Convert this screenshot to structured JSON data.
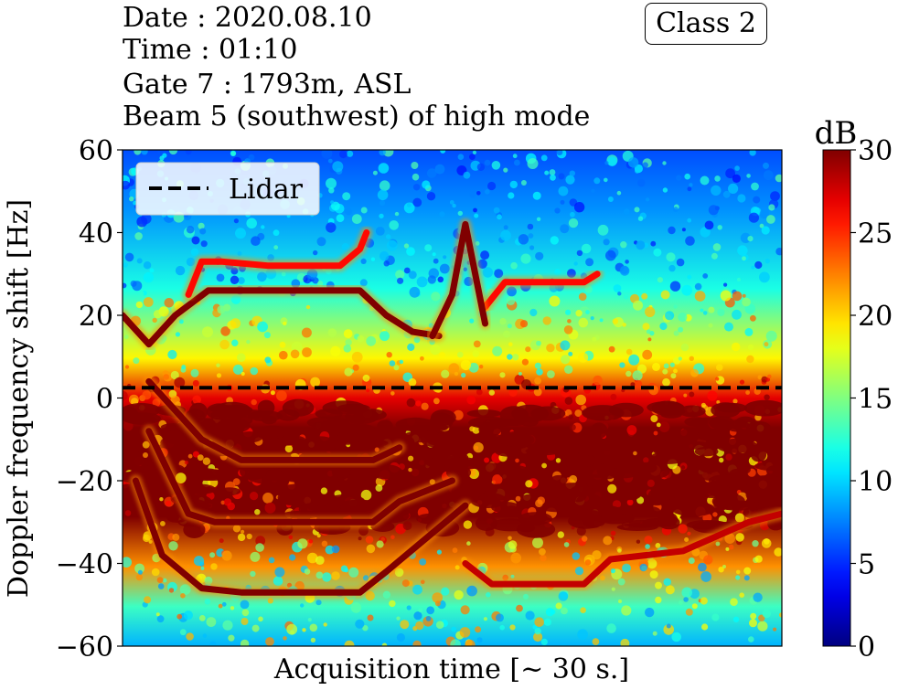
{
  "header": {
    "date_line": "Date : 2020.08.10",
    "time_line": "Time : 01:10",
    "gate_line": "Gate 7 : 1793m, ASL",
    "beam_line": "Beam 5 (southwest) of high mode",
    "class_label": "Class 2"
  },
  "chart_data": {
    "type": "heatmap",
    "title": "",
    "xlabel": "Acquisition time [~ 30 s.]",
    "ylabel": "Doppler frequency shift [Hz]",
    "ylim": [
      -60,
      60
    ],
    "x_ticks": [],
    "y_ticks": [
      60,
      40,
      20,
      0,
      -20,
      -40,
      -60
    ],
    "y_tick_labels": [
      "60",
      "40",
      "20",
      "0",
      "−20",
      "−40",
      "−60"
    ],
    "colorbar": {
      "label": "dB",
      "range": [
        0,
        30
      ],
      "ticks": [
        0,
        5,
        10,
        15,
        20,
        25,
        30
      ],
      "colormap": "jet"
    },
    "lidar_line": {
      "name": "Lidar",
      "y": 2.5,
      "style": "dashed",
      "color": "#000000"
    },
    "legend_position": "top-left",
    "signal_traces": [
      {
        "level_db": 30,
        "points": [
          [
            0,
            20
          ],
          [
            0.04,
            13
          ],
          [
            0.08,
            20
          ],
          [
            0.13,
            26
          ],
          [
            0.36,
            26
          ],
          [
            0.4,
            20
          ],
          [
            0.44,
            16
          ],
          [
            0.48,
            15
          ]
        ]
      },
      {
        "level_db": 30,
        "points": [
          [
            0.04,
            4
          ],
          [
            0.08,
            -3
          ],
          [
            0.12,
            -10
          ],
          [
            0.18,
            -15
          ],
          [
            0.38,
            -15
          ],
          [
            0.42,
            -12
          ]
        ]
      },
      {
        "level_db": 30,
        "points": [
          [
            0.04,
            -8
          ],
          [
            0.1,
            -28
          ],
          [
            0.14,
            -30
          ],
          [
            0.38,
            -30
          ],
          [
            0.42,
            -25
          ],
          [
            0.5,
            -20
          ]
        ]
      },
      {
        "level_db": 30,
        "points": [
          [
            0.02,
            -20
          ],
          [
            0.06,
            -38
          ],
          [
            0.12,
            -46
          ],
          [
            0.18,
            -47
          ],
          [
            0.36,
            -47
          ],
          [
            0.4,
            -42
          ],
          [
            0.52,
            -26
          ]
        ]
      },
      {
        "level_db": 28,
        "points": [
          [
            0.52,
            -40
          ],
          [
            0.56,
            -45
          ],
          [
            0.7,
            -45
          ],
          [
            0.74,
            -39
          ],
          [
            0.85,
            -37
          ],
          [
            0.95,
            -30
          ],
          [
            1,
            -28
          ]
        ]
      },
      {
        "level_db": 26,
        "points": [
          [
            0.1,
            25
          ],
          [
            0.12,
            33
          ],
          [
            0.15,
            33
          ],
          [
            0.22,
            32
          ],
          [
            0.33,
            32
          ],
          [
            0.36,
            36
          ],
          [
            0.37,
            40
          ]
        ]
      },
      {
        "level_db": 26,
        "points": [
          [
            0.55,
            22
          ],
          [
            0.58,
            28
          ],
          [
            0.63,
            28
          ],
          [
            0.7,
            28
          ],
          [
            0.72,
            30
          ]
        ]
      },
      {
        "level_db": 30,
        "points": [
          [
            0.47,
            15
          ],
          [
            0.5,
            25
          ],
          [
            0.52,
            42
          ],
          [
            0.535,
            30
          ],
          [
            0.55,
            18
          ]
        ]
      }
    ]
  }
}
